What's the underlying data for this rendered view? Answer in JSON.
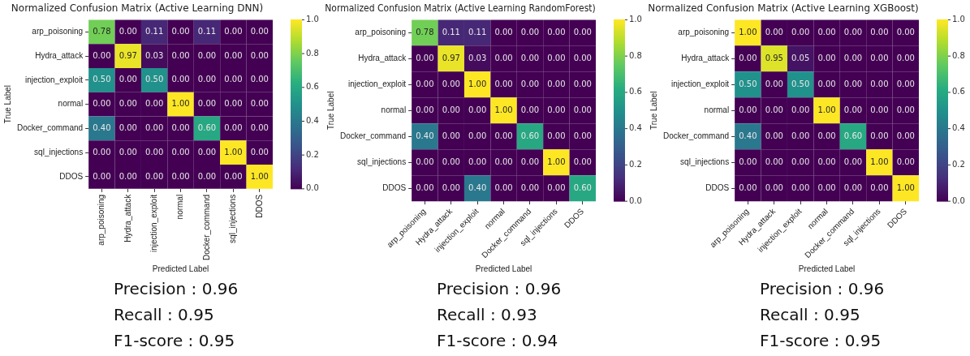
{
  "chart_data": [
    {
      "type": "heatmap",
      "title": "Normalized Confusion Matrix (Active Learning DNN)",
      "xlabel": "Predicted Label",
      "ylabel": "True Label",
      "categories": [
        "arp_poisoning",
        "Hydra_attack",
        "injection_exploit",
        "normal",
        "Docker_command",
        "sql_injections",
        "DDOS"
      ],
      "y_categories": [
        "arp_poisoning",
        "Hydra_attack",
        "injection_exploit",
        "normal",
        "Docker_command",
        "sql_injections",
        "DDOS"
      ],
      "cells": [
        [
          0.78,
          0.0,
          0.11,
          0.0,
          0.11,
          0.0,
          0.0
        ],
        [
          0.0,
          0.97,
          0.03,
          0.0,
          0.0,
          0.0,
          0.0
        ],
        [
          0.5,
          0.0,
          0.5,
          0.0,
          0.0,
          0.0,
          0.0
        ],
        [
          0.0,
          0.0,
          0.0,
          1.0,
          0.0,
          0.0,
          0.0
        ],
        [
          0.4,
          0.0,
          0.0,
          0.0,
          0.6,
          0.0,
          0.0
        ],
        [
          0.0,
          0.0,
          0.0,
          0.0,
          0.0,
          1.0,
          0.0
        ],
        [
          0.0,
          0.0,
          0.0,
          0.0,
          0.0,
          0.0,
          1.0
        ]
      ],
      "cell_labels": [
        [
          "0.78",
          "0.00",
          "0.11",
          "0.00",
          "0.11",
          "0.00",
          "0.00"
        ],
        [
          "0.00",
          "0.97",
          "0.03",
          "0.00",
          "0.00",
          "0.00",
          "0.00"
        ],
        [
          "0.50",
          "0.00",
          "0.50",
          "0.00",
          "0.00",
          "0.00",
          "0.00"
        ],
        [
          "0.00",
          "0.00",
          "0.00",
          "1.00",
          "0.00",
          "0.00",
          "0.00"
        ],
        [
          "0.40",
          "0.00",
          "0.00",
          "0.00",
          "0.60",
          "0.00",
          "0.00"
        ],
        [
          "0.00",
          "0.00",
          "0.00",
          "0.00",
          "0.00",
          "1.00",
          "0.00"
        ],
        [
          "0.00",
          "0.00",
          "0.00",
          "0.00",
          "0.00",
          "0.00",
          "1.00"
        ]
      ],
      "clim": [
        0,
        1
      ],
      "cticks": [
        {
          "value": 0,
          "label": "0.0"
        },
        {
          "value": 0.2,
          "label": "0.2"
        },
        {
          "value": 0.4,
          "label": "0.4"
        },
        {
          "value": 0.6,
          "label": "0.6"
        },
        {
          "value": 0.8,
          "label": "0.8"
        },
        {
          "value": 1,
          "label": "1.0"
        }
      ],
      "grid": false,
      "annotations": [
        "Precision : 0.96",
        "Recall : 0.95",
        "F1-score : 0.95"
      ]
    },
    {
      "type": "heatmap",
      "title": "Normalized Confusion Matrix (Active Learning RandomForest)",
      "xlabel": "Predicted Label",
      "ylabel": "True Label",
      "categories": [
        "arp_poisoning",
        "Hydra_attack",
        "injection_exploit",
        "normal",
        "Docker_command",
        "sql_injections",
        "DDOS"
      ],
      "y_categories": [
        "arp_poisoning",
        "Hydra_attack",
        "injection_exploit",
        "normal",
        "Docker_command",
        "sql_injections",
        "DDOS"
      ],
      "cells": [
        [
          0.78,
          0.11,
          0.11,
          0.0,
          0.0,
          0.0,
          0.0
        ],
        [
          0.0,
          0.97,
          0.03,
          0.0,
          0.0,
          0.0,
          0.0
        ],
        [
          0.0,
          0.0,
          1.0,
          0.0,
          0.0,
          0.0,
          0.0
        ],
        [
          0.0,
          0.0,
          0.0,
          1.0,
          0.0,
          0.0,
          0.0
        ],
        [
          0.4,
          0.0,
          0.0,
          0.0,
          0.6,
          0.0,
          0.0
        ],
        [
          0.0,
          0.0,
          0.0,
          0.0,
          0.0,
          1.0,
          0.0
        ],
        [
          0.0,
          0.0,
          0.4,
          0.0,
          0.0,
          0.0,
          0.6
        ]
      ],
      "cell_labels": [
        [
          "0.78",
          "0.11",
          "0.11",
          "0.00",
          "0.00",
          "0.00",
          "0.00"
        ],
        [
          "0.00",
          "0.97",
          "0.03",
          "0.00",
          "0.00",
          "0.00",
          "0.00"
        ],
        [
          "0.00",
          "0.00",
          "1.00",
          "0.00",
          "0.00",
          "0.00",
          "0.00"
        ],
        [
          "0.00",
          "0.00",
          "0.00",
          "1.00",
          "0.00",
          "0.00",
          "0.00"
        ],
        [
          "0.40",
          "0.00",
          "0.00",
          "0.00",
          "0.60",
          "0.00",
          "0.00"
        ],
        [
          "0.00",
          "0.00",
          "0.00",
          "0.00",
          "0.00",
          "1.00",
          "0.00"
        ],
        [
          "0.00",
          "0.00",
          "0.40",
          "0.00",
          "0.00",
          "0.00",
          "0.60"
        ]
      ],
      "clim": [
        0,
        1
      ],
      "cticks": [
        {
          "value": 0,
          "label": "0.0"
        },
        {
          "value": 0.2,
          "label": "0.2"
        },
        {
          "value": 0.4,
          "label": "0.4"
        },
        {
          "value": 0.6,
          "label": "0.6"
        },
        {
          "value": 0.8,
          "label": "0.8"
        },
        {
          "value": 1,
          "label": "1.0"
        }
      ],
      "grid": false,
      "annotations": [
        "Precision : 0.96",
        "Recall : 0.93",
        "F1-score : 0.94"
      ]
    },
    {
      "type": "heatmap",
      "title": "Normalized Confusion Matrix (Active Learning XGBoost)",
      "xlabel": "Predicted Label",
      "ylabel": "True Label",
      "categories": [
        "arp_poisoning",
        "Hydra_attack",
        "injection_exploit",
        "normal",
        "Docker_command",
        "sql_injections",
        "DDOS"
      ],
      "y_categories": [
        "arp_poisoning",
        "Hydra_attack",
        "injection_exploit",
        "normal",
        "Docker_command",
        "sql_injections",
        "DDOS"
      ],
      "cells": [
        [
          1.0,
          0.0,
          0.0,
          0.0,
          0.0,
          0.0,
          0.0
        ],
        [
          0.0,
          0.95,
          0.05,
          0.0,
          0.0,
          0.0,
          0.0
        ],
        [
          0.5,
          0.0,
          0.5,
          0.0,
          0.0,
          0.0,
          0.0
        ],
        [
          0.0,
          0.0,
          0.0,
          1.0,
          0.0,
          0.0,
          0.0
        ],
        [
          0.4,
          0.0,
          0.0,
          0.0,
          0.6,
          0.0,
          0.0
        ],
        [
          0.0,
          0.0,
          0.0,
          0.0,
          0.0,
          1.0,
          0.0
        ],
        [
          0.0,
          0.0,
          0.0,
          0.0,
          0.0,
          0.0,
          1.0
        ]
      ],
      "cell_labels": [
        [
          "1.00",
          "0.00",
          "0.00",
          "0.00",
          "0.00",
          "0.00",
          "0.00"
        ],
        [
          "0.00",
          "0.95",
          "0.05",
          "0.00",
          "0.00",
          "0.00",
          "0.00"
        ],
        [
          "0.50",
          "0.00",
          "0.50",
          "0.00",
          "0.00",
          "0.00",
          "0.00"
        ],
        [
          "0.00",
          "0.00",
          "0.00",
          "1.00",
          "0.00",
          "0.00",
          "0.00"
        ],
        [
          "0.40",
          "0.00",
          "0.00",
          "0.00",
          "0.60",
          "0.00",
          "0.00"
        ],
        [
          "0.00",
          "0.00",
          "0.00",
          "0.00",
          "0.00",
          "1.00",
          "0.00"
        ],
        [
          "0.00",
          "0.00",
          "0.00",
          "0.00",
          "0.00",
          "0.00",
          "1.00"
        ]
      ],
      "clim": [
        0,
        1
      ],
      "cticks": [
        {
          "value": 0,
          "label": "0.0"
        },
        {
          "value": 0.2,
          "label": "0.2"
        },
        {
          "value": 0.4,
          "label": "0.4"
        },
        {
          "value": 0.6,
          "label": "0.6"
        },
        {
          "value": 0.8,
          "label": "0.8"
        },
        {
          "value": 1,
          "label": "1.0"
        }
      ],
      "grid": false,
      "annotations": [
        "Precision : 0.96",
        "Recall : 0.95",
        "F1-score : 0.95"
      ]
    }
  ]
}
